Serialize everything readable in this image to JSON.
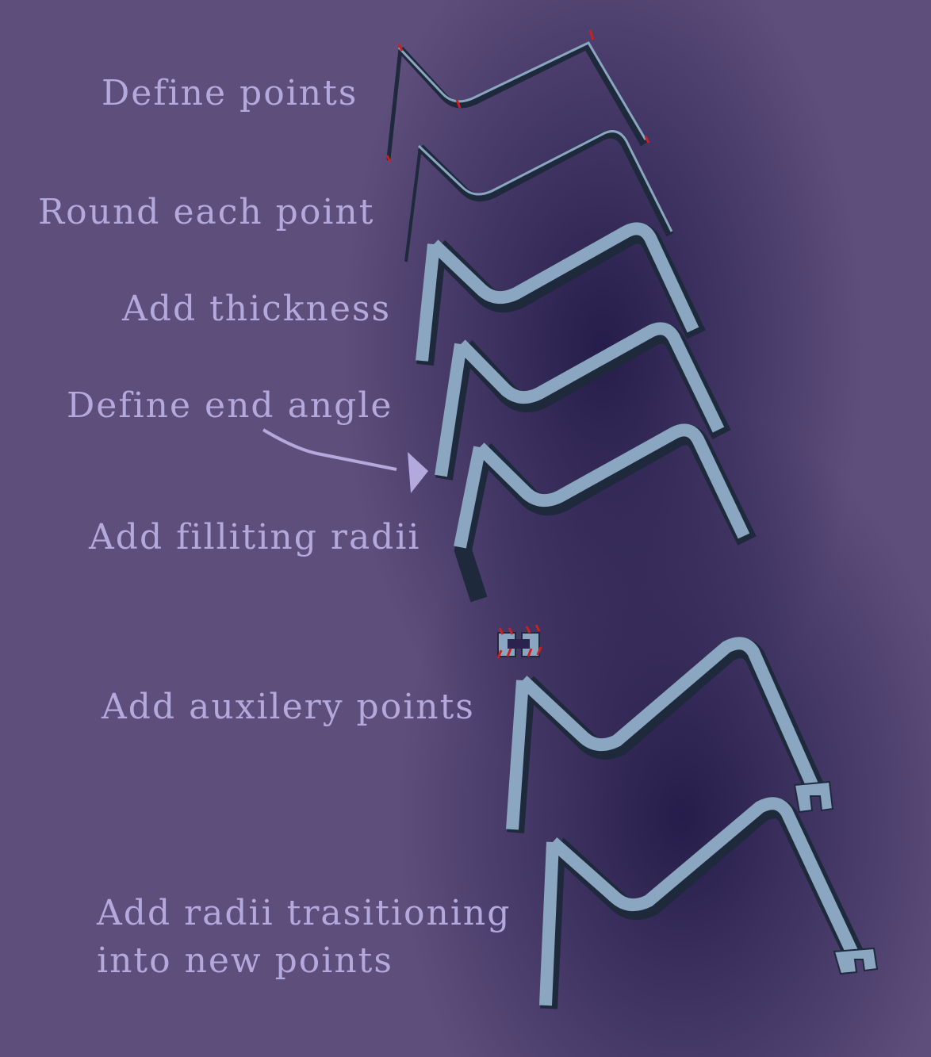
{
  "steps": {
    "define_points": "Define points",
    "round_each_point": "Round each point",
    "add_thickness": "Add thickness",
    "define_end_angle": "Define end angle",
    "add_filleting_radii": "Add filliting radii",
    "add_auxiliary_points": "Add auxilery points",
    "add_radii_line1": "Add radii trasitioning",
    "add_radii_line2": "into new points"
  },
  "colors": {
    "background": "#5e4e7c",
    "background_dark": "#221a48",
    "label_text": "#b3a9dc",
    "wire_face": "#8aa6c0",
    "wire_shadow": "#1e2a3c",
    "point_marker": "#cc1f1f",
    "arrow": "#b3a9dc"
  }
}
